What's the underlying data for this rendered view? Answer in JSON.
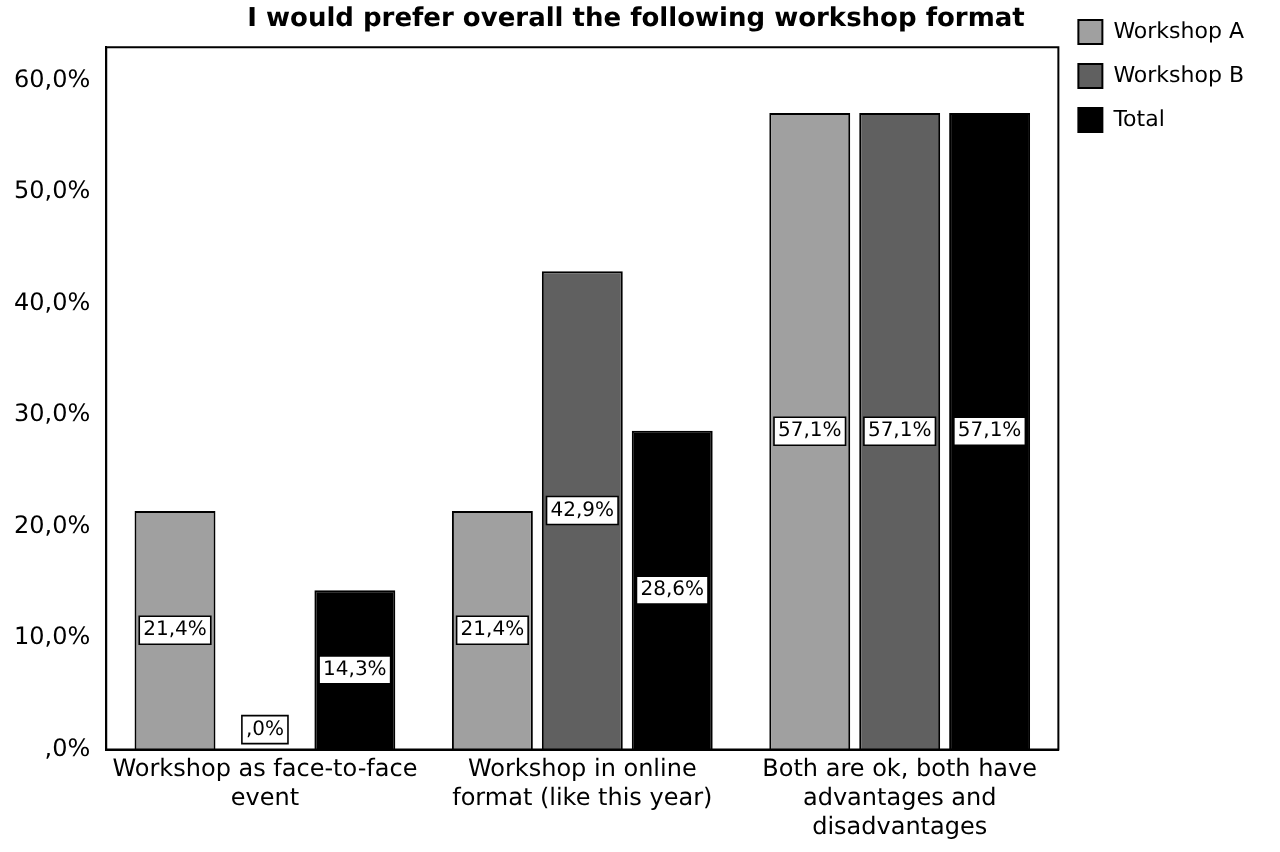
{
  "chart_data": {
    "type": "bar",
    "title": "I would prefer overall the following workshop format",
    "categories": [
      "Workshop as face-to-face event",
      "Workshop in online format (like this year)",
      "Both are ok, both have advantages and disadvantages"
    ],
    "series": [
      {
        "name": "Workshop A",
        "color": "#a0a0a0",
        "values": [
          21.4,
          21.4,
          57.1
        ],
        "value_labels": [
          "21,4%",
          "21,4%",
          "57,1%"
        ]
      },
      {
        "name": "Workshop B",
        "color": "#606060",
        "values": [
          0,
          42.9,
          57.1
        ],
        "value_labels": [
          ",0%",
          "42,9%",
          "57,1%"
        ]
      },
      {
        "name": "Total",
        "color": "#000000",
        "values": [
          14.3,
          28.6,
          57.1
        ],
        "value_labels": [
          "14,3%",
          "28,6%",
          "57,1%"
        ]
      }
    ],
    "ylim": [
      0,
      63
    ],
    "yticks": [
      {
        "value": 0,
        "label": ",0%"
      },
      {
        "value": 10,
        "label": "10,0%"
      },
      {
        "value": 20,
        "label": "20,0%"
      },
      {
        "value": 30,
        "label": "30,0%"
      },
      {
        "value": 40,
        "label": "40,0%"
      },
      {
        "value": 50,
        "label": "50,0%"
      },
      {
        "value": 60,
        "label": "60,0%"
      }
    ],
    "grid": false,
    "legend": "top right"
  }
}
